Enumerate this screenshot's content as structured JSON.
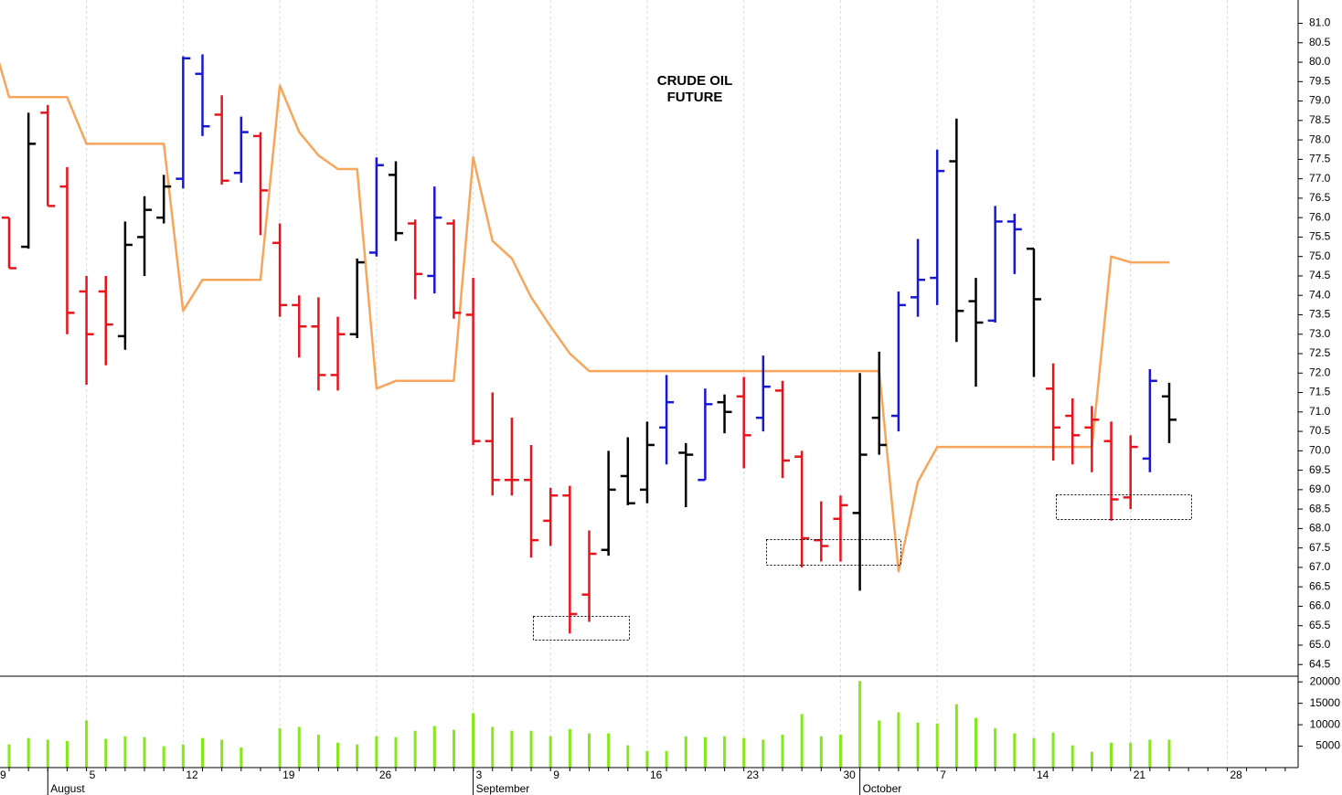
{
  "chart_data": {
    "type": "ohlc",
    "title_lines": [
      "CRUDE OIL",
      "FUTURE"
    ],
    "categories": [
      "9",
      null,
      null,
      null,
      null,
      "5",
      null,
      null,
      null,
      null,
      "12",
      null,
      null,
      null,
      null,
      "19",
      null,
      null,
      null,
      null,
      "26",
      null,
      null,
      null,
      null,
      "3",
      null,
      null,
      null,
      "9",
      null,
      null,
      null,
      null,
      "16",
      null,
      null,
      null,
      null,
      "23",
      null,
      null,
      null,
      null,
      "30",
      null,
      null,
      null,
      null,
      "7",
      null,
      null,
      null,
      null,
      "14",
      null,
      null,
      null,
      null,
      "21",
      null,
      null,
      null,
      null,
      "28",
      null,
      null,
      null
    ],
    "month_labels": [
      null,
      null,
      null,
      "August",
      null,
      null,
      null,
      null,
      null,
      null,
      null,
      null,
      null,
      null,
      null,
      null,
      null,
      null,
      null,
      null,
      null,
      null,
      null,
      null,
      null,
      "September",
      null,
      null,
      null,
      null,
      null,
      null,
      null,
      null,
      null,
      null,
      null,
      null,
      null,
      null,
      null,
      null,
      null,
      null,
      null,
      "October",
      null,
      null,
      null,
      null,
      null,
      null,
      null,
      null,
      null,
      null,
      null,
      null,
      null,
      null,
      null,
      null,
      null,
      null,
      null,
      null,
      null,
      null
    ],
    "open": [
      null,
      76.0,
      75.25,
      78.7,
      76.8,
      74.1,
      74.1,
      72.95,
      75.5,
      76.0,
      77.0,
      79.7,
      78.65,
      77.15,
      78.1,
      75.35,
      73.75,
      73.2,
      71.95,
      73.0,
      75.1,
      77.1,
      75.85,
      74.5,
      75.85,
      73.5,
      70.25,
      69.25,
      69.25,
      68.2,
      68.85,
      66.3,
      67.45,
      69.35,
      69.0,
      70.6,
      69.95,
      69.25,
      71.25,
      71.4,
      70.85,
      71.55,
      69.85,
      67.7,
      68.25,
      68.4,
      70.85,
      70.9,
      73.95,
      74.45,
      77.45,
      73.85,
      73.35,
      75.9,
      75.2,
      71.6,
      70.9,
      70.6,
      70.25,
      68.8,
      69.8,
      71.4,
      null,
      null,
      null,
      null,
      null,
      null
    ],
    "high": [
      null,
      76.0,
      78.7,
      78.9,
      77.3,
      74.5,
      74.5,
      75.9,
      76.55,
      77.1,
      80.15,
      80.2,
      79.15,
      78.6,
      78.2,
      75.85,
      74.0,
      73.95,
      73.45,
      74.95,
      77.55,
      77.45,
      75.95,
      76.8,
      75.95,
      74.45,
      71.5,
      70.85,
      70.15,
      69.05,
      69.1,
      67.95,
      70.0,
      70.35,
      70.75,
      71.95,
      70.2,
      71.6,
      71.45,
      71.9,
      72.45,
      71.8,
      70.0,
      68.7,
      68.85,
      72.0,
      72.55,
      74.1,
      75.45,
      77.75,
      78.55,
      74.45,
      76.3,
      76.1,
      75.2,
      72.25,
      71.35,
      71.15,
      70.75,
      70.4,
      72.1,
      71.75,
      null,
      null,
      null,
      null,
      null,
      null
    ],
    "low": [
      null,
      74.7,
      75.2,
      76.3,
      73.0,
      71.7,
      72.2,
      72.6,
      74.5,
      75.85,
      76.75,
      78.1,
      76.85,
      76.9,
      75.55,
      73.45,
      72.4,
      71.55,
      71.55,
      72.9,
      75.0,
      75.4,
      73.9,
      74.05,
      73.4,
      70.15,
      68.85,
      68.85,
      67.25,
      67.55,
      65.3,
      65.6,
      67.3,
      68.6,
      68.65,
      69.65,
      68.55,
      69.25,
      70.45,
      69.55,
      70.5,
      69.3,
      67.0,
      67.15,
      67.15,
      66.4,
      69.9,
      70.5,
      73.45,
      73.75,
      72.8,
      71.65,
      73.3,
      74.55,
      71.9,
      69.75,
      69.65,
      69.45,
      68.2,
      68.5,
      69.45,
      70.2,
      null,
      null,
      null,
      null,
      null,
      null
    ],
    "close": [
      null,
      74.7,
      77.9,
      76.3,
      73.55,
      73.0,
      73.25,
      75.3,
      76.2,
      76.8,
      80.1,
      78.35,
      76.95,
      78.2,
      76.7,
      73.75,
      73.2,
      71.95,
      73.0,
      74.85,
      77.35,
      75.6,
      74.55,
      76.0,
      73.55,
      70.25,
      69.25,
      69.25,
      67.7,
      68.85,
      65.8,
      67.35,
      69.0,
      68.65,
      70.15,
      71.25,
      69.9,
      71.2,
      71.0,
      70.4,
      71.65,
      69.75,
      67.75,
      67.55,
      68.6,
      69.9,
      70.15,
      73.75,
      74.4,
      77.2,
      73.6,
      73.3,
      75.9,
      75.7,
      73.9,
      70.6,
      70.4,
      70.8,
      68.75,
      70.1,
      71.8,
      70.8,
      null,
      null,
      null,
      null,
      null,
      null
    ],
    "bar_colors": [
      null,
      "#e8141c",
      "#000000",
      "#e8141c",
      "#e8141c",
      "#e8141c",
      "#e8141c",
      "#000000",
      "#000000",
      "#000000",
      "#1818d0",
      "#1818d0",
      "#e8141c",
      "#1818d0",
      "#e8141c",
      "#e8141c",
      "#e8141c",
      "#e8141c",
      "#e8141c",
      "#000000",
      "#1818d0",
      "#000000",
      "#e8141c",
      "#1818d0",
      "#e8141c",
      "#e8141c",
      "#e8141c",
      "#e8141c",
      "#e8141c",
      "#e8141c",
      "#e8141c",
      "#e8141c",
      "#000000",
      "#000000",
      "#000000",
      "#1818d0",
      "#000000",
      "#1818d0",
      "#000000",
      "#e8141c",
      "#1818d0",
      "#e8141c",
      "#e8141c",
      "#e8141c",
      "#e8141c",
      "#000000",
      "#000000",
      "#1818d0",
      "#1818d0",
      "#1818d0",
      "#000000",
      "#000000",
      "#1818d0",
      "#1818d0",
      "#000000",
      "#e8141c",
      "#e8141c",
      "#e8141c",
      "#e8141c",
      "#e8141c",
      "#1818d0",
      "#000000",
      null,
      null,
      null,
      null,
      null,
      null
    ],
    "ylim": [
      64.2,
      81.6
    ],
    "yticks": [
      64.5,
      {
        "value": 65.0,
        "label": "65.0"
      },
      65.5,
      {
        "value": 66.0,
        "label": "66.0"
      },
      66.5,
      {
        "value": 67.0,
        "label": "67.0"
      },
      67.5,
      {
        "value": 68.0,
        "label": "68.0"
      },
      68.5,
      {
        "value": 69.0,
        "label": "69.0"
      },
      69.5,
      {
        "value": 70.0,
        "label": "70.0"
      },
      70.5,
      {
        "value": 71.0,
        "label": "71.0"
      },
      71.5,
      {
        "value": 72.0,
        "label": "72.0"
      },
      72.5,
      {
        "value": 73.0,
        "label": "73.0"
      },
      73.5,
      {
        "value": 74.0,
        "label": "74.0"
      },
      74.5,
      {
        "value": 75.0,
        "label": "75.0"
      },
      75.5,
      {
        "value": 76.0,
        "label": "76.0"
      },
      76.5,
      {
        "value": 77.0,
        "label": "77.0"
      },
      77.5,
      {
        "value": 78.0,
        "label": "78.0"
      },
      78.5,
      {
        "value": 79.0,
        "label": "79.0"
      },
      79.5,
      {
        "value": 80.0,
        "label": "80.0"
      },
      80.5,
      {
        "value": 81.0,
        "label": "81.0"
      }
    ],
    "grid": true,
    "overlay": {
      "color": "#f7a55a",
      "values": [
        80.8,
        79.1,
        79.1,
        79.1,
        79.1,
        77.9,
        77.9,
        77.9,
        77.9,
        77.9,
        73.6,
        74.4,
        74.4,
        74.4,
        74.4,
        79.4,
        78.2,
        77.6,
        77.25,
        77.25,
        71.6,
        71.8,
        71.8,
        71.8,
        71.8,
        77.55,
        75.4,
        74.95,
        73.95,
        73.2,
        72.5,
        72.05,
        72.05,
        72.05,
        72.05,
        72.05,
        72.05,
        72.05,
        72.05,
        72.05,
        72.05,
        72.05,
        72.05,
        72.05,
        72.05,
        72.05,
        72.05,
        66.9,
        69.2,
        70.1,
        70.1,
        70.1,
        70.1,
        70.1,
        70.1,
        70.1,
        70.1,
        70.1,
        75.0,
        74.85,
        74.85,
        74.85,
        null,
        null,
        null,
        null,
        null,
        null
      ]
    },
    "volume": {
      "color": "#84e81b",
      "values": [
        null,
        5400,
        6900,
        6500,
        6200,
        11000,
        6700,
        7300,
        7100,
        5000,
        5400,
        6900,
        6500,
        4700,
        null,
        9200,
        9500,
        7700,
        5800,
        5400,
        7300,
        7100,
        8600,
        9700,
        8800,
        12700,
        9500,
        8600,
        8600,
        7300,
        9000,
        8000,
        8000,
        5200,
        3900,
        3900,
        7300,
        7100,
        7300,
        6900,
        6500,
        7700,
        12500,
        7300,
        7700,
        20200,
        11000,
        12900,
        10500,
        10300,
        14800,
        11600,
        9200,
        8000,
        6900,
        8200,
        5200,
        3700,
        5800,
        5800,
        6500,
        6500,
        null,
        null,
        null,
        null,
        null,
        null
      ],
      "ylim": [
        0,
        20900
      ],
      "yticks": [
        5000,
        10000,
        15000,
        20000
      ]
    }
  }
}
